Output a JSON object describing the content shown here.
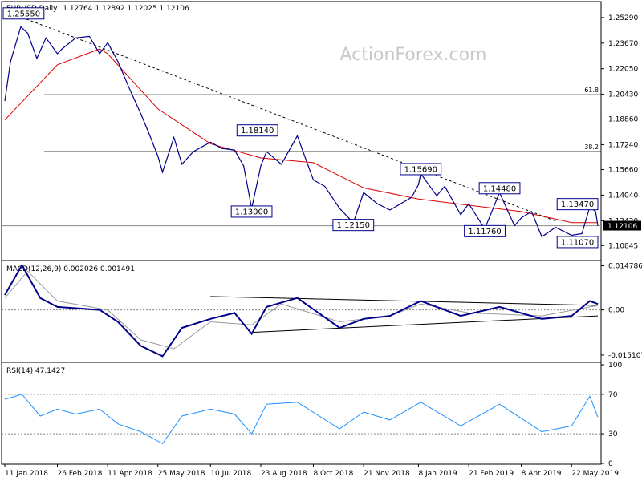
{
  "chart_data": {
    "type": "line",
    "instrument": "EURUSD",
    "timeframe": "Daily",
    "watermark": "ActionForex.com",
    "x_labels": [
      "11 Jan 2018",
      "26 Feb 2018",
      "11 Apr 2018",
      "25 May 2018",
      "10 Jul 2018",
      "23 Aug 2018",
      "8 Oct 2018",
      "21 Nov 2018",
      "8 Jan 2019",
      "21 Feb 2019",
      "8 Apr 2019",
      "22 May 2019"
    ],
    "price_pane": {
      "ohlc_label": "1.12764 1.12892 1.12025 1.12106",
      "y_ticks": [
        "1.25290",
        "1.23670",
        "1.22050",
        "1.20430",
        "1.18860",
        "1.17240",
        "1.15660",
        "1.14040",
        "1.12420",
        "1.10845"
      ],
      "ylim": [
        1.1,
        1.262
      ],
      "current_price": "1.12106",
      "close_series": [
        {
          "d": "11 Jan 2018",
          "v": 1.2
        },
        {
          "d": "16 Jan 2018",
          "v": 1.225
        },
        {
          "d": "25 Jan 2018",
          "v": 1.247
        },
        {
          "d": "31 Jan 2018",
          "v": 1.243
        },
        {
          "d": "08 Feb 2018",
          "v": 1.227
        },
        {
          "d": "16 Feb 2018",
          "v": 1.24
        },
        {
          "d": "26 Feb 2018",
          "v": 1.23
        },
        {
          "d": "02 Mar 2018",
          "v": 1.233
        },
        {
          "d": "14 Mar 2018",
          "v": 1.24
        },
        {
          "d": "26 Mar 2018",
          "v": 1.241
        },
        {
          "d": "04 Apr 2018",
          "v": 1.23
        },
        {
          "d": "11 Apr 2018",
          "v": 1.237
        },
        {
          "d": "20 Apr 2018",
          "v": 1.225
        },
        {
          "d": "30 Apr 2018",
          "v": 1.208
        },
        {
          "d": "10 May 2018",
          "v": 1.192
        },
        {
          "d": "18 May 2018",
          "v": 1.178
        },
        {
          "d": "25 May 2018",
          "v": 1.165
        },
        {
          "d": "29 May 2018",
          "v": 1.155
        },
        {
          "d": "08 Jun 2018",
          "v": 1.177
        },
        {
          "d": "15 Jun 2018",
          "v": 1.16
        },
        {
          "d": "25 Jun 2018",
          "v": 1.168
        },
        {
          "d": "10 Jul 2018",
          "v": 1.174
        },
        {
          "d": "20 Jul 2018",
          "v": 1.17
        },
        {
          "d": "31 Jul 2018",
          "v": 1.169
        },
        {
          "d": "08 Aug 2018",
          "v": 1.159
        },
        {
          "d": "15 Aug 2018",
          "v": 1.132
        },
        {
          "d": "23 Aug 2018",
          "v": 1.159
        },
        {
          "d": "28 Aug 2018",
          "v": 1.168
        },
        {
          "d": "10 Sep 2018",
          "v": 1.16
        },
        {
          "d": "24 Sep 2018",
          "v": 1.178
        },
        {
          "d": "08 Oct 2018",
          "v": 1.15
        },
        {
          "d": "18 Oct 2018",
          "v": 1.146
        },
        {
          "d": "31 Oct 2018",
          "v": 1.132
        },
        {
          "d": "12 Nov 2018",
          "v": 1.123
        },
        {
          "d": "21 Nov 2018",
          "v": 1.142
        },
        {
          "d": "03 Dec 2018",
          "v": 1.135
        },
        {
          "d": "14 Dec 2018",
          "v": 1.131
        },
        {
          "d": "02 Jan 2019",
          "v": 1.139
        },
        {
          "d": "08 Jan 2019",
          "v": 1.147
        },
        {
          "d": "10 Jan 2019",
          "v": 1.154
        },
        {
          "d": "24 Jan 2019",
          "v": 1.14
        },
        {
          "d": "31 Jan 2019",
          "v": 1.146
        },
        {
          "d": "14 Feb 2019",
          "v": 1.128
        },
        {
          "d": "21 Feb 2019",
          "v": 1.135
        },
        {
          "d": "07 Mar 2019",
          "v": 1.119
        },
        {
          "d": "20 Mar 2019",
          "v": 1.142
        },
        {
          "d": "02 Apr 2019",
          "v": 1.121
        },
        {
          "d": "08 Apr 2019",
          "v": 1.126
        },
        {
          "d": "17 Apr 2019",
          "v": 1.13
        },
        {
          "d": "26 Apr 2019",
          "v": 1.114
        },
        {
          "d": "08 May 2019",
          "v": 1.12
        },
        {
          "d": "22 May 2019",
          "v": 1.115
        },
        {
          "d": "31 May 2019",
          "v": 1.116
        },
        {
          "d": "07 Jun 2019",
          "v": 1.133
        },
        {
          "d": "12 Jun 2019",
          "v": 1.13
        },
        {
          "d": "14 Jun 2019",
          "v": 1.121
        }
      ],
      "ma_series": [
        {
          "d": "11 Jan 2018",
          "v": 1.188
        },
        {
          "d": "26 Feb 2018",
          "v": 1.223
        },
        {
          "d": "04 Apr 2018",
          "v": 1.233
        },
        {
          "d": "11 Apr 2018",
          "v": 1.23
        },
        {
          "d": "25 May 2018",
          "v": 1.195
        },
        {
          "d": "10 Jul 2018",
          "v": 1.173
        },
        {
          "d": "23 Aug 2018",
          "v": 1.164
        },
        {
          "d": "08 Oct 2018",
          "v": 1.161
        },
        {
          "d": "21 Nov 2018",
          "v": 1.145
        },
        {
          "d": "08 Jan 2019",
          "v": 1.138
        },
        {
          "d": "21 Feb 2019",
          "v": 1.134
        },
        {
          "d": "08 Apr 2019",
          "v": 1.13
        },
        {
          "d": "22 May 2019",
          "v": 1.123
        },
        {
          "d": "14 Jun 2019",
          "v": 1.123
        }
      ],
      "trendline": [
        {
          "d": "26 Jan 2018",
          "v": 1.253
        },
        {
          "d": "08 May 2019",
          "v": 1.124
        }
      ],
      "fib_levels": [
        {
          "label": "61.8",
          "v": 1.204
        },
        {
          "label": "38.2",
          "v": 1.168
        }
      ],
      "support_line": 1.121,
      "annotations": [
        {
          "label": "1.25550",
          "d": "26 Jan 2018",
          "v": 1.2555
        },
        {
          "label": "1.18140",
          "d": "20 Aug 2018",
          "v": 1.1814
        },
        {
          "label": "1.13000",
          "d": "15 Aug 2018",
          "v": 1.13
        },
        {
          "label": "1.12150",
          "d": "12 Nov 2018",
          "v": 1.1215
        },
        {
          "label": "1.15690",
          "d": "10 Jan 2019",
          "v": 1.1569
        },
        {
          "label": "1.14480",
          "d": "20 Mar 2019",
          "v": 1.1448
        },
        {
          "label": "1.11760",
          "d": "07 Mar 2019",
          "v": 1.1176
        },
        {
          "label": "1.13470",
          "d": "07 Jun 2019",
          "v": 1.1347
        },
        {
          "label": "1.11070",
          "d": "31 May 2019",
          "v": 1.1107
        }
      ]
    },
    "macd_pane": {
      "title": "MACD(12,26,9) 0.002026 0.001491",
      "y_ticks": [
        "0.014786",
        "0.00",
        "-0.015107"
      ],
      "ylim": [
        -0.017,
        0.016
      ],
      "macd_series": [
        {
          "d": "11 Jan 2018",
          "v": 0.005
        },
        {
          "d": "26 Jan 2018",
          "v": 0.015
        },
        {
          "d": "11 Feb 2018",
          "v": 0.004
        },
        {
          "d": "26 Feb 2018",
          "v": 0.001
        },
        {
          "d": "04 Apr 2018",
          "v": 0.0
        },
        {
          "d": "20 Apr 2018",
          "v": -0.004
        },
        {
          "d": "10 May 2018",
          "v": -0.012
        },
        {
          "d": "29 May 2018",
          "v": -0.0155
        },
        {
          "d": "15 Jun 2018",
          "v": -0.006
        },
        {
          "d": "10 Jul 2018",
          "v": -0.003
        },
        {
          "d": "31 Jul 2018",
          "v": -0.001
        },
        {
          "d": "15 Aug 2018",
          "v": -0.008
        },
        {
          "d": "28 Aug 2018",
          "v": 0.001
        },
        {
          "d": "24 Sep 2018",
          "v": 0.004
        },
        {
          "d": "31 Oct 2018",
          "v": -0.006
        },
        {
          "d": "21 Nov 2018",
          "v": -0.003
        },
        {
          "d": "14 Dec 2018",
          "v": -0.002
        },
        {
          "d": "10 Jan 2019",
          "v": 0.003
        },
        {
          "d": "14 Feb 2019",
          "v": -0.002
        },
        {
          "d": "20 Mar 2019",
          "v": 0.001
        },
        {
          "d": "26 Apr 2019",
          "v": -0.003
        },
        {
          "d": "22 May 2019",
          "v": -0.002
        },
        {
          "d": "07 Jun 2019",
          "v": 0.003
        },
        {
          "d": "14 Jun 2019",
          "v": 0.002
        }
      ],
      "signal_series": [
        {
          "d": "11 Jan 2018",
          "v": 0.004
        },
        {
          "d": "31 Jan 2018",
          "v": 0.013
        },
        {
          "d": "26 Feb 2018",
          "v": 0.003
        },
        {
          "d": "11 Apr 2018",
          "v": 0.0
        },
        {
          "d": "10 May 2018",
          "v": -0.01
        },
        {
          "d": "08 Jun 2018",
          "v": -0.013
        },
        {
          "d": "10 Jul 2018",
          "v": -0.004
        },
        {
          "d": "15 Aug 2018",
          "v": -0.005
        },
        {
          "d": "10 Sep 2018",
          "v": 0.002
        },
        {
          "d": "31 Oct 2018",
          "v": -0.004
        },
        {
          "d": "14 Dec 2018",
          "v": -0.002
        },
        {
          "d": "10 Jan 2019",
          "v": 0.002
        },
        {
          "d": "21 Feb 2019",
          "v": -0.001
        },
        {
          "d": "26 Apr 2019",
          "v": -0.002
        },
        {
          "d": "14 Jun 2019",
          "v": 0.0015
        }
      ],
      "wedge_upper": [
        {
          "d": "10 Jul 2018",
          "v": 0.0045
        },
        {
          "d": "14 Jun 2019",
          "v": 0.0015
        }
      ],
      "wedge_lower": [
        {
          "d": "15 Aug 2018",
          "v": -0.0075
        },
        {
          "d": "14 Jun 2019",
          "v": -0.002
        }
      ]
    },
    "rsi_pane": {
      "title": "RSI(14) 47.1427",
      "y_ticks": [
        "100",
        "70",
        "30",
        "0"
      ],
      "levels": [
        70,
        30
      ],
      "ylim": [
        0,
        100
      ],
      "series": [
        {
          "d": "11 Jan 2018",
          "v": 65
        },
        {
          "d": "26 Jan 2018",
          "v": 70
        },
        {
          "d": "11 Feb 2018",
          "v": 48
        },
        {
          "d": "26 Feb 2018",
          "v": 55
        },
        {
          "d": "14 Mar 2018",
          "v": 50
        },
        {
          "d": "04 Apr 2018",
          "v": 55
        },
        {
          "d": "20 Apr 2018",
          "v": 40
        },
        {
          "d": "10 May 2018",
          "v": 32
        },
        {
          "d": "29 May 2018",
          "v": 20
        },
        {
          "d": "15 Jun 2018",
          "v": 48
        },
        {
          "d": "10 Jul 2018",
          "v": 55
        },
        {
          "d": "31 Jul 2018",
          "v": 50
        },
        {
          "d": "15 Aug 2018",
          "v": 30
        },
        {
          "d": "28 Aug 2018",
          "v": 60
        },
        {
          "d": "24 Sep 2018",
          "v": 62
        },
        {
          "d": "31 Oct 2018",
          "v": 35
        },
        {
          "d": "21 Nov 2018",
          "v": 52
        },
        {
          "d": "14 Dec 2018",
          "v": 44
        },
        {
          "d": "10 Jan 2019",
          "v": 62
        },
        {
          "d": "14 Feb 2019",
          "v": 38
        },
        {
          "d": "20 Mar 2019",
          "v": 60
        },
        {
          "d": "26 Apr 2019",
          "v": 32
        },
        {
          "d": "22 May 2019",
          "v": 38
        },
        {
          "d": "07 Jun 2019",
          "v": 68
        },
        {
          "d": "14 Jun 2019",
          "v": 47
        }
      ]
    },
    "colors": {
      "price": "#00008b",
      "ma": "#dd0000",
      "macd": "#00008b",
      "signal": "#999999",
      "rsi": "#1e90ff",
      "lines": "#000000",
      "dotted": "#888888"
    }
  }
}
